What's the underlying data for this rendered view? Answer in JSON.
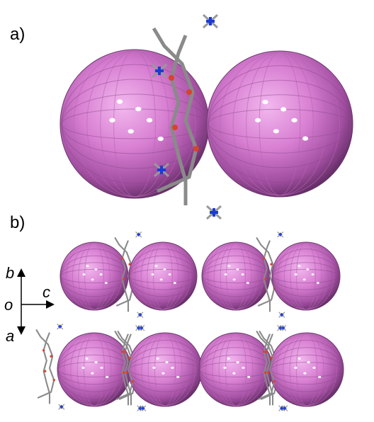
{
  "panels": [
    {
      "label": "a)"
    },
    {
      "label": "b)"
    }
  ],
  "axes": {
    "b": "b",
    "c": "c",
    "o": "o",
    "a": "a"
  }
}
